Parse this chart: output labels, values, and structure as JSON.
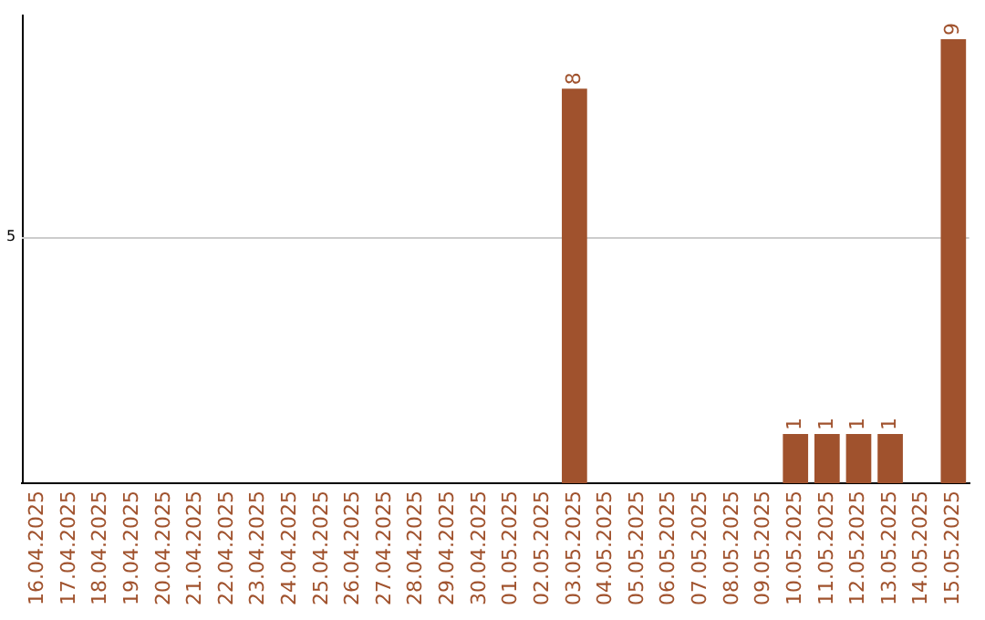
{
  "chart_data": {
    "type": "bar",
    "categories": [
      "16.04.2025",
      "17.04.2025",
      "18.04.2025",
      "19.04.2025",
      "20.04.2025",
      "21.04.2025",
      "22.04.2025",
      "23.04.2025",
      "24.04.2025",
      "25.04.2025",
      "26.04.2025",
      "27.04.2025",
      "28.04.2025",
      "29.04.2025",
      "30.04.2025",
      "01.05.2025",
      "02.05.2025",
      "03.05.2025",
      "04.05.2025",
      "05.05.2025",
      "06.05.2025",
      "07.05.2025",
      "08.05.2025",
      "09.05.2025",
      "10.05.2025",
      "11.05.2025",
      "12.05.2025",
      "13.05.2025",
      "14.05.2025",
      "15.05.2025"
    ],
    "values": [
      null,
      null,
      null,
      null,
      null,
      null,
      null,
      null,
      null,
      null,
      null,
      null,
      null,
      null,
      null,
      null,
      null,
      8,
      null,
      null,
      null,
      null,
      null,
      null,
      1,
      1,
      1,
      1,
      null,
      9
    ],
    "data_labels": true,
    "ylim": [
      0,
      9.5
    ],
    "ref_lines": [
      {
        "axis": "y",
        "value": 5,
        "label": "5",
        "color": "#cccccc"
      }
    ],
    "color": "#a0522d",
    "legend": false
  }
}
